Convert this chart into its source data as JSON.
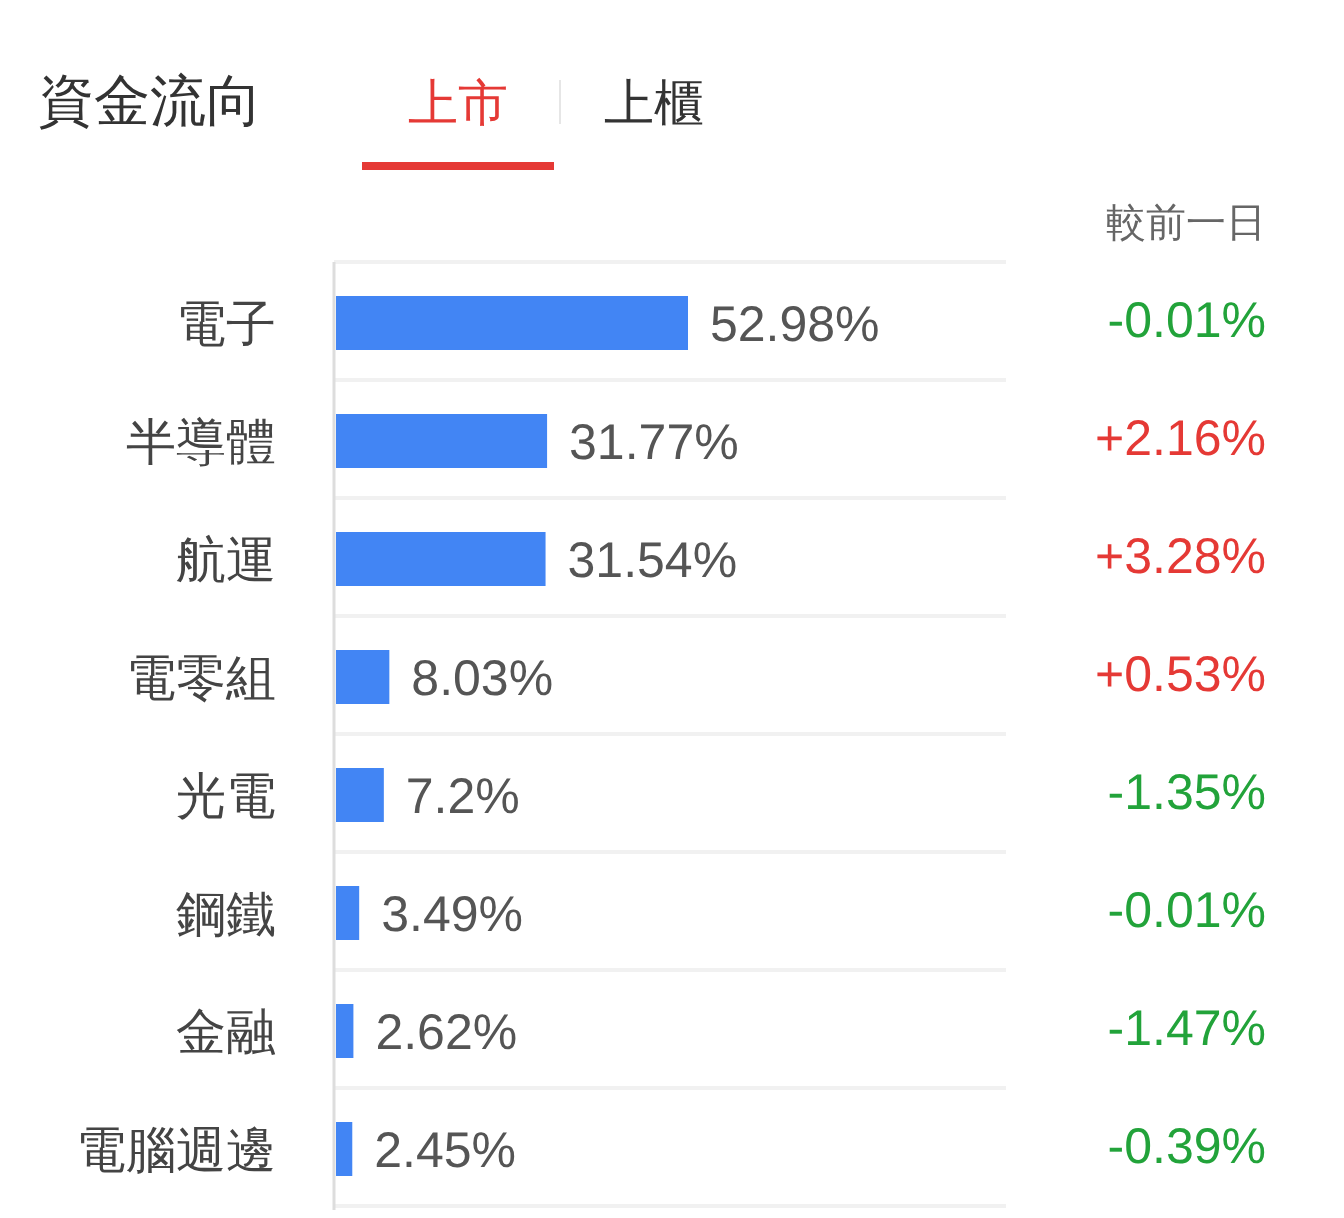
{
  "chart_data": [
    {
      "type": "bar",
      "orientation": "horizontal",
      "title": "資金流向",
      "categories": [
        "電子",
        "半導體",
        "航運",
        "電零組",
        "光電",
        "鋼鐵",
        "金融",
        "電腦週邊"
      ],
      "values": [
        52.98,
        31.77,
        31.54,
        8.03,
        7.2,
        3.49,
        2.62,
        2.45
      ],
      "value_labels": [
        "52.98%",
        "31.77%",
        "31.54%",
        "8.03%",
        "7.2%",
        "3.49%",
        "2.62%",
        "2.45%"
      ],
      "color": "#4285f4",
      "grid": "y",
      "annotations": [
        "上市",
        "上櫃"
      ]
    },
    {
      "type": "other",
      "title": "較前一日",
      "values": [
        -0.01,
        2.16,
        3.28,
        0.53,
        -1.35,
        -0.01,
        -1.47,
        -0.39
      ],
      "value_labels": [
        "-0.01%",
        "+2.16%",
        "+3.28%",
        "+0.53%",
        "-1.35%",
        "-0.01%",
        "-1.47%",
        "-0.39%"
      ],
      "colors": [
        "#22a33a",
        "#e53935",
        "#e53935",
        "#e53935",
        "#22a33a",
        "#22a33a",
        "#22a33a",
        "#22a33a"
      ]
    }
  ]
}
